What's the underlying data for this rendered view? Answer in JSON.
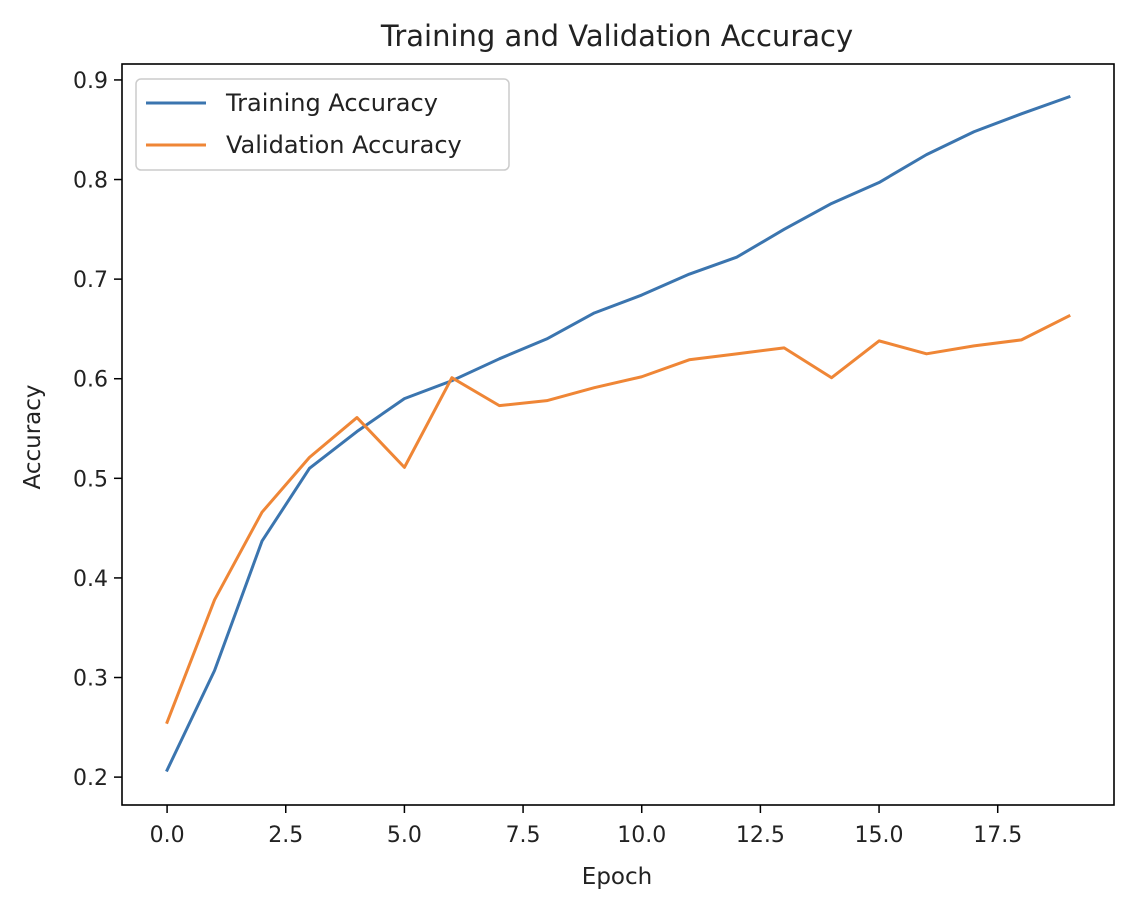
{
  "chart_data": {
    "type": "line",
    "title": "Training and Validation Accuracy",
    "xlabel": "Epoch",
    "ylabel": "Accuracy",
    "xlim": [
      -0.95,
      19.95
    ],
    "ylim": [
      0.172,
      0.916
    ],
    "xticks": [
      0.0,
      2.5,
      5.0,
      7.5,
      10.0,
      12.5,
      15.0,
      17.5
    ],
    "xtick_labels": [
      "0.0",
      "2.5",
      "5.0",
      "7.5",
      "10.0",
      "12.5",
      "15.0",
      "17.5"
    ],
    "yticks": [
      0.2,
      0.3,
      0.4,
      0.5,
      0.6,
      0.7,
      0.8,
      0.9
    ],
    "ytick_labels": [
      "0.2",
      "0.3",
      "0.4",
      "0.5",
      "0.6",
      "0.7",
      "0.8",
      "0.9"
    ],
    "grid": false,
    "legend_position": "top-left",
    "x": [
      0,
      1,
      2,
      3,
      4,
      5,
      6,
      7,
      8,
      9,
      10,
      11,
      12,
      13,
      14,
      15,
      16,
      17,
      18,
      19
    ],
    "series": [
      {
        "name": "Training Accuracy",
        "color": "#3b75af",
        "values": [
          0.207,
          0.307,
          0.437,
          0.51,
          0.547,
          0.58,
          0.598,
          0.62,
          0.64,
          0.666,
          0.684,
          0.705,
          0.722,
          0.75,
          0.776,
          0.797,
          0.825,
          0.848,
          0.866,
          0.883
        ]
      },
      {
        "name": "Validation Accuracy",
        "color": "#ef8636",
        "values": [
          0.255,
          0.378,
          0.466,
          0.521,
          0.561,
          0.511,
          0.601,
          0.573,
          0.578,
          0.591,
          0.602,
          0.619,
          0.625,
          0.631,
          0.601,
          0.638,
          0.625,
          0.633,
          0.639,
          0.663
        ]
      }
    ]
  }
}
